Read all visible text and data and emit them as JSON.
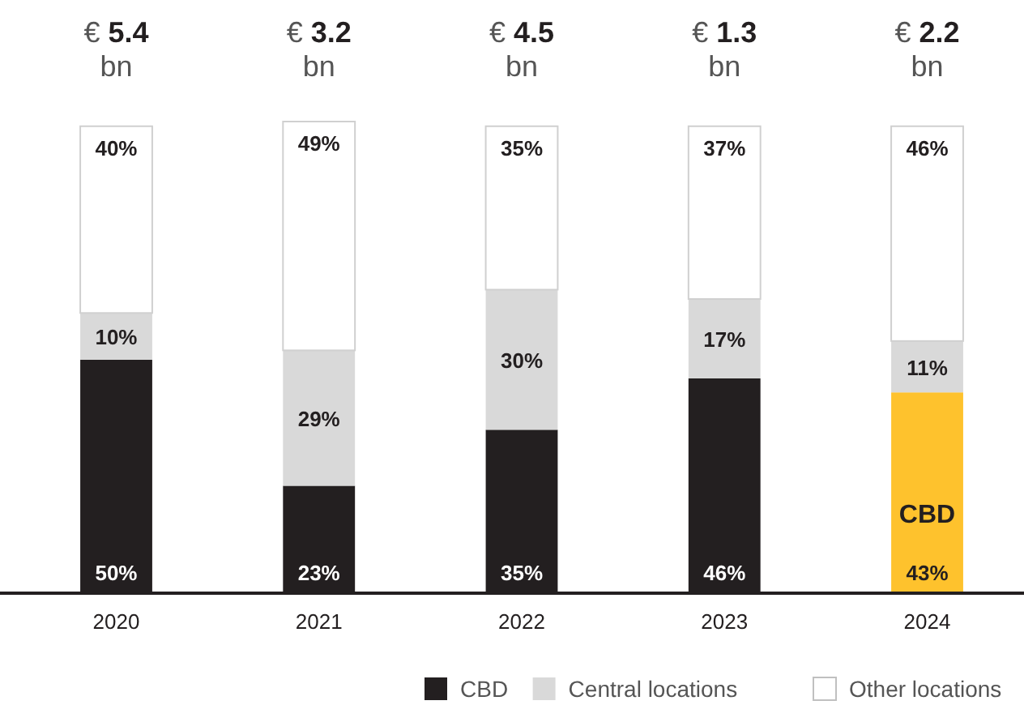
{
  "chart_data": {
    "type": "bar",
    "stacked": true,
    "categories": [
      "2020",
      "2021",
      "2022",
      "2023",
      "2024"
    ],
    "series": [
      {
        "name": "CBD",
        "color": "#231f20",
        "colors": [
          "#231f20",
          "#231f20",
          "#231f20",
          "#231f20",
          "#fec22d"
        ],
        "values": [
          50,
          23,
          35,
          46,
          43
        ],
        "value_labels": [
          "50%",
          "23%",
          "35%",
          "46%",
          "43%"
        ]
      },
      {
        "name": "Central locations",
        "color": "#d9d9d9",
        "values": [
          10,
          29,
          30,
          17,
          11
        ],
        "value_labels": [
          "10%",
          "29%",
          "30%",
          "17%",
          "11%"
        ]
      },
      {
        "name": "Other locations",
        "color": "#ffffff",
        "values": [
          40,
          49,
          35,
          37,
          46
        ],
        "value_labels": [
          "40%",
          "49%",
          "35%",
          "37%",
          "46%"
        ]
      }
    ],
    "annotations": [
      "€ 5.4 bn",
      "€ 3.2 bn",
      "€ 4.5 bn",
      "€ 1.3 bn",
      "€ 2.2 bn",
      "CBD"
    ],
    "legend": "bottom right"
  }
}
